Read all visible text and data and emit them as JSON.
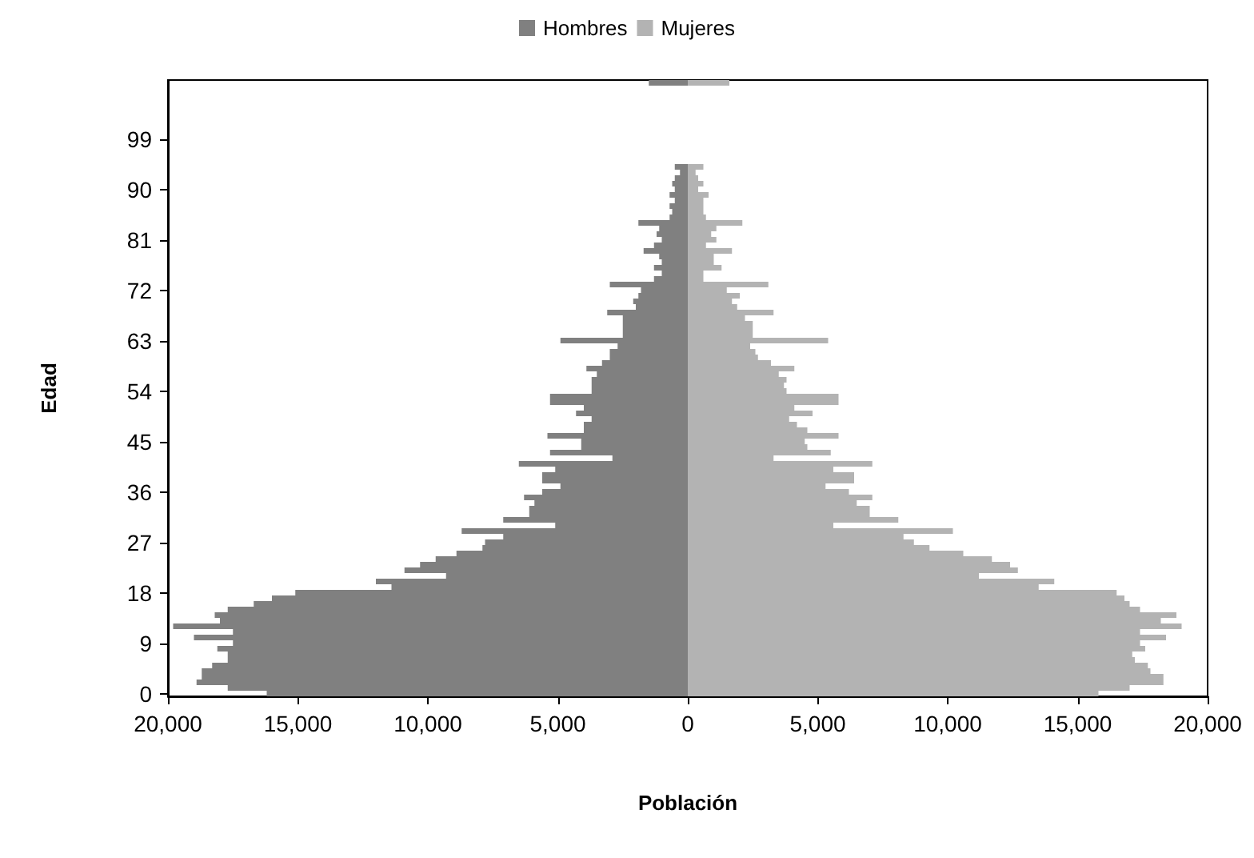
{
  "chart_data": {
    "type": "bar",
    "orientation": "horizontal",
    "stacked": true,
    "xlabel": "Población",
    "ylabel": "Edad",
    "legend": "top",
    "grid": false,
    "categories": [
      null,
      null,
      null,
      null,
      null,
      null,
      null,
      null,
      null,
      null,
      "99",
      null,
      null,
      null,
      null,
      null,
      null,
      null,
      null,
      "90",
      null,
      null,
      null,
      null,
      null,
      null,
      null,
      null,
      "81",
      null,
      null,
      null,
      null,
      null,
      null,
      null,
      null,
      "72",
      null,
      null,
      null,
      null,
      null,
      null,
      null,
      null,
      "63",
      null,
      null,
      null,
      null,
      null,
      null,
      null,
      null,
      "54",
      null,
      null,
      null,
      null,
      null,
      null,
      null,
      null,
      "45",
      null,
      null,
      null,
      null,
      null,
      null,
      null,
      null,
      "36",
      null,
      null,
      null,
      null,
      null,
      null,
      null,
      null,
      "27",
      null,
      null,
      null,
      null,
      null,
      null,
      null,
      null,
      "18",
      null,
      null,
      null,
      null,
      null,
      null,
      null,
      null,
      "9",
      null,
      null,
      null,
      null,
      null,
      null,
      null,
      null,
      "0"
    ],
    "xlim": [
      -20000,
      20000
    ],
    "xticks": [
      {
        "value": -20000,
        "label": "20,000"
      },
      {
        "value": -15000,
        "label": "15,000"
      },
      {
        "value": -10000,
        "label": "10,000"
      },
      {
        "value": -5000,
        "label": "5,000"
      },
      0,
      {
        "value": 5000,
        "label": "5,000"
      },
      {
        "value": 10000,
        "label": "10,000"
      },
      {
        "value": 15000,
        "label": "15,000"
      },
      {
        "value": 20000,
        "label": "20,000"
      }
    ],
    "series": [
      {
        "name": "Hombres",
        "color": "#808080",
        "values": [
          -1500,
          0,
          0,
          0,
          0,
          0,
          0,
          0,
          0,
          0,
          0,
          0,
          0,
          0,
          0,
          -500,
          -300,
          -500,
          -600,
          -500,
          -700,
          -500,
          -700,
          -600,
          -700,
          -1900,
          -1100,
          -1200,
          -1000,
          -1300,
          -1700,
          -1100,
          -1000,
          -1300,
          -1000,
          -1300,
          -3000,
          -1800,
          -1900,
          -2100,
          -2000,
          -3100,
          -2500,
          -2500,
          -2500,
          -2500,
          -4900,
          -2700,
          -3000,
          -3000,
          -3300,
          -3900,
          -3500,
          -3700,
          -3700,
          -3700,
          -5300,
          -5300,
          -4000,
          -4300,
          -3700,
          -4000,
          -4000,
          -5400,
          -4100,
          -4100,
          -5300,
          -2900,
          -6500,
          -5100,
          -5600,
          -5600,
          -4900,
          -5600,
          -6300,
          -5900,
          -6100,
          -6100,
          -7100,
          -5100,
          -8700,
          -7100,
          -7800,
          -7900,
          -8900,
          -9700,
          -10300,
          -10900,
          -9300,
          -12000,
          -11400,
          -15100,
          -16000,
          -16700,
          -17700,
          -18200,
          -18000,
          -19800,
          -17500,
          -19000,
          -17500,
          -18100,
          -17700,
          -17700,
          -18300,
          -18700,
          -18700,
          -18900,
          -17700,
          -16200
        ]
      },
      {
        "name": "Mujeres",
        "color": "#b3b3b3",
        "values": [
          1600,
          0,
          0,
          0,
          0,
          0,
          0,
          0,
          0,
          0,
          0,
          0,
          0,
          0,
          0,
          600,
          300,
          400,
          600,
          400,
          800,
          600,
          600,
          600,
          700,
          2100,
          1100,
          900,
          1100,
          700,
          1700,
          1000,
          1000,
          1300,
          600,
          600,
          3100,
          1500,
          2000,
          1700,
          1900,
          3300,
          2200,
          2500,
          2500,
          2500,
          5400,
          2400,
          2600,
          2700,
          3200,
          4100,
          3500,
          3800,
          3700,
          3800,
          5800,
          5800,
          4100,
          4800,
          3900,
          4200,
          4600,
          5800,
          4500,
          4600,
          5500,
          3300,
          7100,
          5600,
          6400,
          6400,
          5300,
          6200,
          7100,
          6500,
          7000,
          7000,
          8100,
          5600,
          10200,
          8300,
          8700,
          9300,
          10600,
          11700,
          12400,
          12700,
          11200,
          14100,
          13500,
          16500,
          16800,
          17000,
          17400,
          18800,
          18200,
          19000,
          17400,
          18400,
          17400,
          17600,
          17100,
          17200,
          17700,
          17800,
          18300,
          18300,
          17000,
          15800
        ]
      }
    ]
  }
}
